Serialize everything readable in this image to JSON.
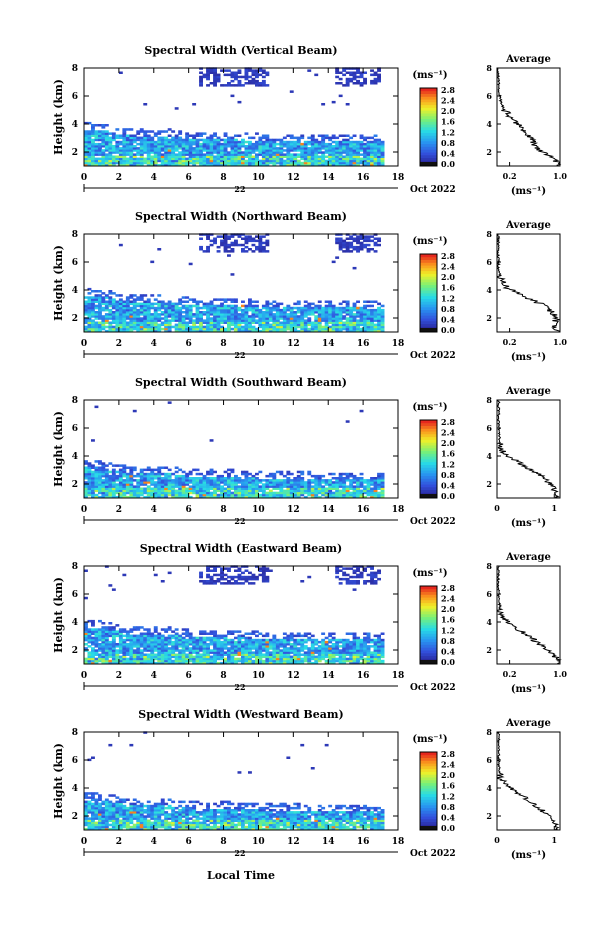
{
  "figure": {
    "xlabel": "Local Time",
    "units_label": "(ms⁻¹)",
    "avg_title": "Average",
    "avg_xlabel": "(ms⁻¹)",
    "date_day": "22",
    "date_month_year": "Oct 2022",
    "ylabel": "Height (km)"
  },
  "chart_data": [
    {
      "type": "heatmap",
      "title": "Spectral Width (Vertical Beam)",
      "ylabel": "Height (km)",
      "xlim": [
        0,
        18
      ],
      "ylim": [
        1,
        8
      ],
      "xticks": [
        0,
        2,
        4,
        6,
        8,
        10,
        12,
        14,
        16,
        18
      ],
      "yticks": [
        2,
        4,
        6,
        8
      ],
      "cbar_ticks": [
        "0.0",
        "0.4",
        "0.8",
        "1.2",
        "1.6",
        "2.0",
        "2.4",
        "2.8"
      ],
      "avg_xticks": [
        "0.2",
        "1.0"
      ],
      "avg_xlim": [
        0,
        1.0
      ],
      "upper_layer": true,
      "avg_profile": [
        [
          1.0,
          1.0
        ],
        [
          0.95,
          1.3
        ],
        [
          0.85,
          1.7
        ],
        [
          0.7,
          2.0
        ],
        [
          0.62,
          2.4
        ],
        [
          0.55,
          2.8
        ],
        [
          0.5,
          3.3
        ],
        [
          0.4,
          3.7
        ],
        [
          0.3,
          4.1
        ],
        [
          0.2,
          4.5
        ],
        [
          0.12,
          5.0
        ],
        [
          0.06,
          5.6
        ],
        [
          0.04,
          6.2
        ],
        [
          0.03,
          6.8
        ],
        [
          0.02,
          7.3
        ],
        [
          0.02,
          7.8
        ]
      ]
    },
    {
      "type": "heatmap",
      "title": "Spectral Width (Northward Beam)",
      "ylabel": "Height (km)",
      "xlim": [
        0,
        18
      ],
      "ylim": [
        1,
        8
      ],
      "xticks": [
        0,
        2,
        4,
        6,
        8,
        10,
        12,
        14,
        16,
        18
      ],
      "yticks": [
        2,
        4,
        6,
        8
      ],
      "cbar_ticks": [
        "0.0",
        "0.4",
        "0.8",
        "1.2",
        "1.6",
        "2.0",
        "2.4",
        "2.8"
      ],
      "avg_xticks": [
        "0.2",
        "1.0"
      ],
      "avg_xlim": [
        0,
        1.0
      ],
      "upper_layer": true,
      "avg_profile": [
        [
          1.0,
          1.0
        ],
        [
          0.9,
          1.5
        ],
        [
          0.95,
          2.0
        ],
        [
          0.85,
          2.5
        ],
        [
          0.7,
          3.0
        ],
        [
          0.5,
          3.4
        ],
        [
          0.3,
          3.8
        ],
        [
          0.15,
          4.2
        ],
        [
          0.06,
          4.8
        ],
        [
          0.03,
          5.5
        ],
        [
          0.02,
          6.2
        ],
        [
          0.02,
          7.0
        ],
        [
          0.02,
          7.8
        ]
      ]
    },
    {
      "type": "heatmap",
      "title": "Spectral Width (Southward Beam)",
      "ylabel": "Height (km)",
      "xlim": [
        0,
        18
      ],
      "ylim": [
        1,
        8
      ],
      "xticks": [
        0,
        2,
        4,
        6,
        8,
        10,
        12,
        14,
        16,
        18
      ],
      "yticks": [
        2,
        4,
        6,
        8
      ],
      "cbar_ticks": [
        "0.0",
        "0.4",
        "0.8",
        "1.2",
        "1.6",
        "2.0",
        "2.4",
        "2.8"
      ],
      "avg_xticks": [
        "0",
        "1"
      ],
      "avg_xlim": [
        0,
        1.1
      ],
      "upper_layer": false,
      "avg_profile": [
        [
          1.05,
          1.0
        ],
        [
          1.0,
          1.5
        ],
        [
          0.95,
          2.0
        ],
        [
          0.8,
          2.5
        ],
        [
          0.6,
          3.0
        ],
        [
          0.4,
          3.5
        ],
        [
          0.2,
          3.9
        ],
        [
          0.1,
          4.3
        ],
        [
          0.05,
          4.8
        ],
        [
          0.04,
          5.5
        ],
        [
          0.03,
          6.2
        ],
        [
          0.03,
          7.0
        ],
        [
          0.03,
          7.8
        ]
      ]
    },
    {
      "type": "heatmap",
      "title": "Spectral Width (Eastward Beam)",
      "ylabel": "Height (km)",
      "xlim": [
        0,
        18
      ],
      "ylim": [
        1,
        8
      ],
      "xticks": [
        0,
        2,
        4,
        6,
        8,
        10,
        12,
        14,
        16,
        18
      ],
      "yticks": [
        2,
        4,
        6,
        8
      ],
      "cbar_ticks": [
        "0.0",
        "0.4",
        "0.8",
        "1.2",
        "1.6",
        "2.0",
        "2.4",
        "2.8"
      ],
      "avg_xticks": [
        "0.2",
        "1.0"
      ],
      "avg_xlim": [
        0,
        1.0
      ],
      "upper_layer": true,
      "avg_profile": [
        [
          1.0,
          1.0
        ],
        [
          0.95,
          1.4
        ],
        [
          0.85,
          1.8
        ],
        [
          0.75,
          2.2
        ],
        [
          0.62,
          2.6
        ],
        [
          0.5,
          3.0
        ],
        [
          0.35,
          3.4
        ],
        [
          0.2,
          3.9
        ],
        [
          0.1,
          4.4
        ],
        [
          0.05,
          5.0
        ],
        [
          0.03,
          5.6
        ],
        [
          0.03,
          6.3
        ],
        [
          0.02,
          7.0
        ],
        [
          0.02,
          7.8
        ]
      ]
    },
    {
      "type": "heatmap",
      "title": "Spectral Width (Westward Beam)",
      "ylabel": "Height (km)",
      "xlim": [
        0,
        18
      ],
      "ylim": [
        1,
        8
      ],
      "xticks": [
        0,
        2,
        4,
        6,
        8,
        10,
        12,
        14,
        16,
        18
      ],
      "yticks": [
        2,
        4,
        6,
        8
      ],
      "cbar_ticks": [
        "0.0",
        "0.4",
        "0.8",
        "1.2",
        "1.6",
        "2.0",
        "2.4",
        "2.8"
      ],
      "avg_xticks": [
        "0",
        "1"
      ],
      "avg_xlim": [
        0,
        1.1
      ],
      "upper_layer": false,
      "avg_profile": [
        [
          1.05,
          1.0
        ],
        [
          1.0,
          1.5
        ],
        [
          0.9,
          2.0
        ],
        [
          0.75,
          2.5
        ],
        [
          0.6,
          3.0
        ],
        [
          0.45,
          3.4
        ],
        [
          0.3,
          3.8
        ],
        [
          0.15,
          4.2
        ],
        [
          0.06,
          4.7
        ],
        [
          0.04,
          5.3
        ],
        [
          0.03,
          6.0
        ],
        [
          0.03,
          6.8
        ],
        [
          0.03,
          7.8
        ]
      ]
    }
  ]
}
